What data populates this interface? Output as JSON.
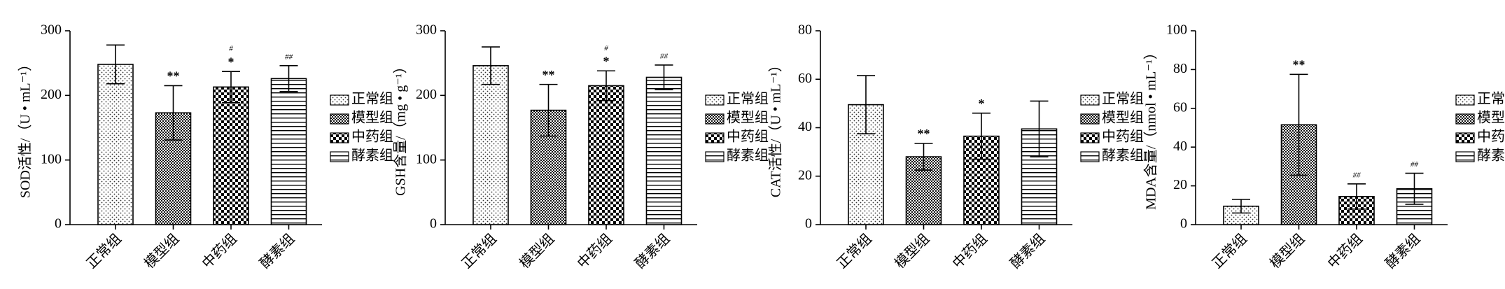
{
  "chart_data": [
    {
      "type": "bar",
      "ylabel": "SOD活性/（U • mL⁻¹）",
      "categories": [
        "正常组",
        "模型组",
        "中药组",
        "酵素组"
      ],
      "values": [
        248,
        173,
        213,
        226
      ],
      "errors": [
        30,
        42,
        24,
        20
      ],
      "annotations": [
        [],
        [
          "**"
        ],
        [
          "*",
          "#"
        ],
        [
          "##"
        ]
      ],
      "ylim": [
        0,
        300
      ],
      "yticks": [
        0,
        100,
        200,
        300
      ],
      "patterns": [
        "dots",
        "dense-check",
        "check",
        "hlines"
      ],
      "legend": "right"
    },
    {
      "type": "bar",
      "ylabel": "GSH含量/（mg • g⁻¹）",
      "categories": [
        "正常组",
        "模型组",
        "中药组",
        "酵素组"
      ],
      "values": [
        246,
        177,
        215,
        228
      ],
      "errors": [
        29,
        40,
        23,
        19
      ],
      "annotations": [
        [],
        [
          "**"
        ],
        [
          "*",
          "#"
        ],
        [
          "##"
        ]
      ],
      "ylim": [
        0,
        300
      ],
      "yticks": [
        0,
        100,
        200,
        300
      ],
      "patterns": [
        "dots",
        "dense-check",
        "check",
        "hlines"
      ],
      "legend": "right"
    },
    {
      "type": "bar",
      "ylabel": "CAT活性/（U • mL⁻¹）",
      "categories": [
        "正常组",
        "模型组",
        "中药组",
        "酵素组"
      ],
      "values": [
        49.5,
        28,
        36.5,
        39.5
      ],
      "errors": [
        12,
        5.5,
        9.5,
        11.5
      ],
      "annotations": [
        [],
        [
          "**"
        ],
        [
          "*"
        ],
        []
      ],
      "ylim": [
        0,
        80
      ],
      "yticks": [
        0,
        20,
        40,
        60,
        80
      ],
      "patterns": [
        "dots",
        "dense-check",
        "check",
        "hlines"
      ],
      "legend": "right"
    },
    {
      "type": "bar",
      "ylabel": "MDA含量/（nmol • mL⁻¹）",
      "categories": [
        "正常组",
        "模型组",
        "中药组",
        "酵素组"
      ],
      "values": [
        9.5,
        51.5,
        14.5,
        18.5
      ],
      "errors": [
        3.5,
        26,
        6.5,
        8
      ],
      "annotations": [
        [],
        [
          "**"
        ],
        [
          "##"
        ],
        [
          "##"
        ]
      ],
      "ylim": [
        0,
        100
      ],
      "yticks": [
        0,
        20,
        40,
        60,
        80,
        100
      ],
      "patterns": [
        "dots",
        "dense-check",
        "check",
        "hlines"
      ],
      "legend": "right"
    }
  ]
}
